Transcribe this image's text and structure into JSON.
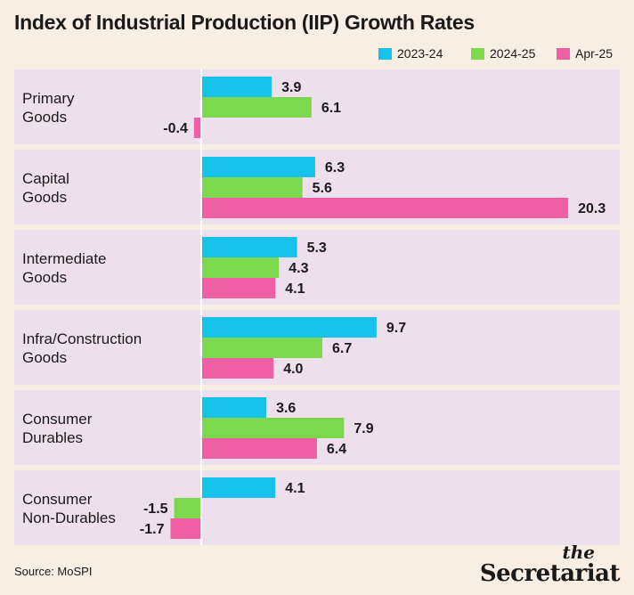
{
  "title": "Index of Industrial Production (IIP) Growth Rates",
  "source": "Source: MoSPI",
  "logo": {
    "the": "the",
    "name": "Secretariat"
  },
  "colors": {
    "panel": "#ede0ec",
    "s2023": "#16c1ea",
    "s2024": "#7cd94e",
    "sApr": "#ef5fa4",
    "axis": "#ffffff"
  },
  "chart_data": {
    "type": "bar",
    "orientation": "horizontal",
    "title": "Index of Industrial Production (IIP) Growth Rates",
    "categories": [
      [
        "Primary",
        "Goods"
      ],
      [
        "Capital",
        "Goods"
      ],
      [
        "Intermediate",
        "Goods"
      ],
      [
        "Infra/Construction",
        "Goods"
      ],
      [
        "Consumer",
        "Durables"
      ],
      [
        "Consumer",
        "Non-Durables"
      ]
    ],
    "series": [
      {
        "name": "2023-24",
        "color": "#16c1ea",
        "values": [
          3.9,
          6.3,
          5.3,
          9.7,
          3.6,
          4.1
        ]
      },
      {
        "name": "2024-25",
        "color": "#7cd94e",
        "values": [
          6.1,
          5.6,
          4.3,
          6.7,
          7.9,
          -1.5
        ]
      },
      {
        "name": "Apr-25",
        "color": "#ef5fa4",
        "values": [
          -0.4,
          20.3,
          4.1,
          4.0,
          6.4,
          -1.7
        ]
      }
    ],
    "labels": [
      [
        "3.9",
        "6.3",
        "5.3",
        "9.7",
        "3.6",
        "4.1"
      ],
      [
        "6.1",
        "5.6",
        "4.3",
        "6.7",
        "7.9",
        "-1.5"
      ],
      [
        "-0.4",
        "20.3",
        "4.1",
        "4.0",
        "6.4",
        "-1.7"
      ]
    ],
    "legend_position": "top-right",
    "grid": false
  }
}
